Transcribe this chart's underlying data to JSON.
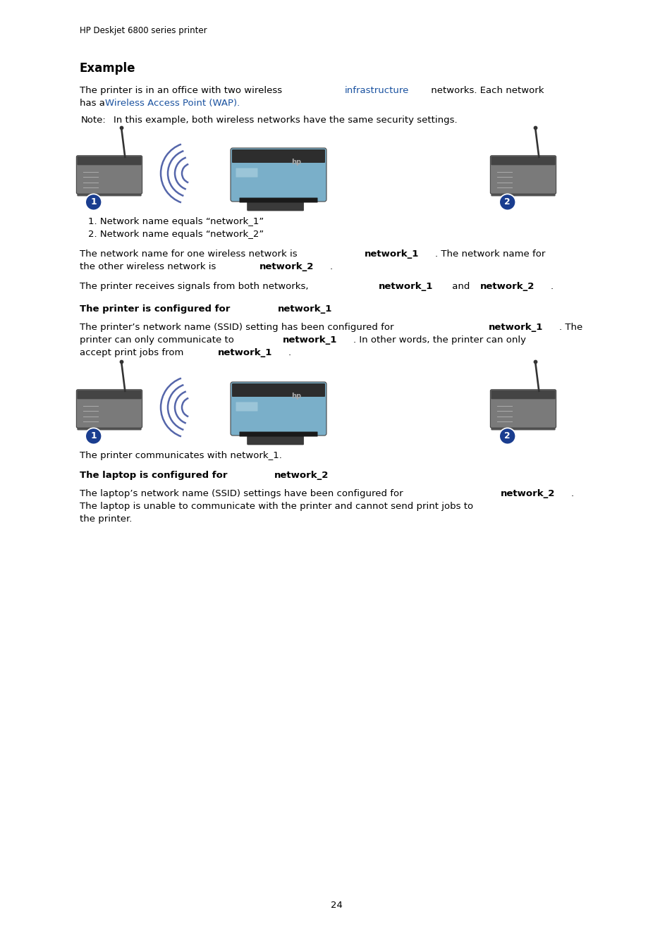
{
  "bg_color": "#ffffff",
  "header_text": "HP Deskjet 6800 series printer",
  "header_fontsize": 8.5,
  "section_title": "Example",
  "section_title_fontsize": 12,
  "body_fontsize": 9.5,
  "link_color": "#1a52a0",
  "body_color": "#000000",
  "circle_color": "#1a3d8f",
  "circle_text_color": "#ffffff",
  "page_number": "24"
}
